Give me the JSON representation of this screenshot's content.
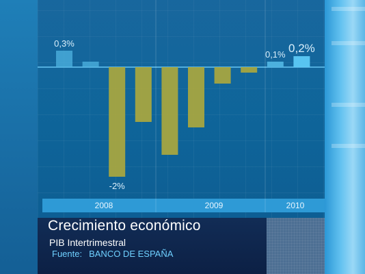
{
  "chart_data": {
    "type": "bar",
    "title": "Crecimiento económico",
    "subtitle": "PIB Intertrimestral",
    "source_label": "Fuente:",
    "source": "BANCO DE ESPAÑA",
    "ylim": [
      -2.2,
      0.45
    ],
    "years": [
      "2008",
      "2009",
      "2010"
    ],
    "values": [
      0.3,
      0.1,
      -2.0,
      -1.0,
      -1.6,
      -1.1,
      -0.3,
      -0.1,
      0.1,
      0.2
    ],
    "data_labels": [
      {
        "index": 0,
        "text": "0,3%",
        "position": "above"
      },
      {
        "index": 2,
        "text": "-2%",
        "position": "below"
      },
      {
        "index": 8,
        "text": "0,1%",
        "position": "above"
      },
      {
        "index": 9,
        "text": "0,2%",
        "position": "above"
      }
    ],
    "colors": {
      "positive": "#4fb4e2",
      "negative": "#a6a540",
      "highlight": "#5cc9f5",
      "baseline": "#68c6f4",
      "year_bar": "#2e9ad6"
    }
  }
}
